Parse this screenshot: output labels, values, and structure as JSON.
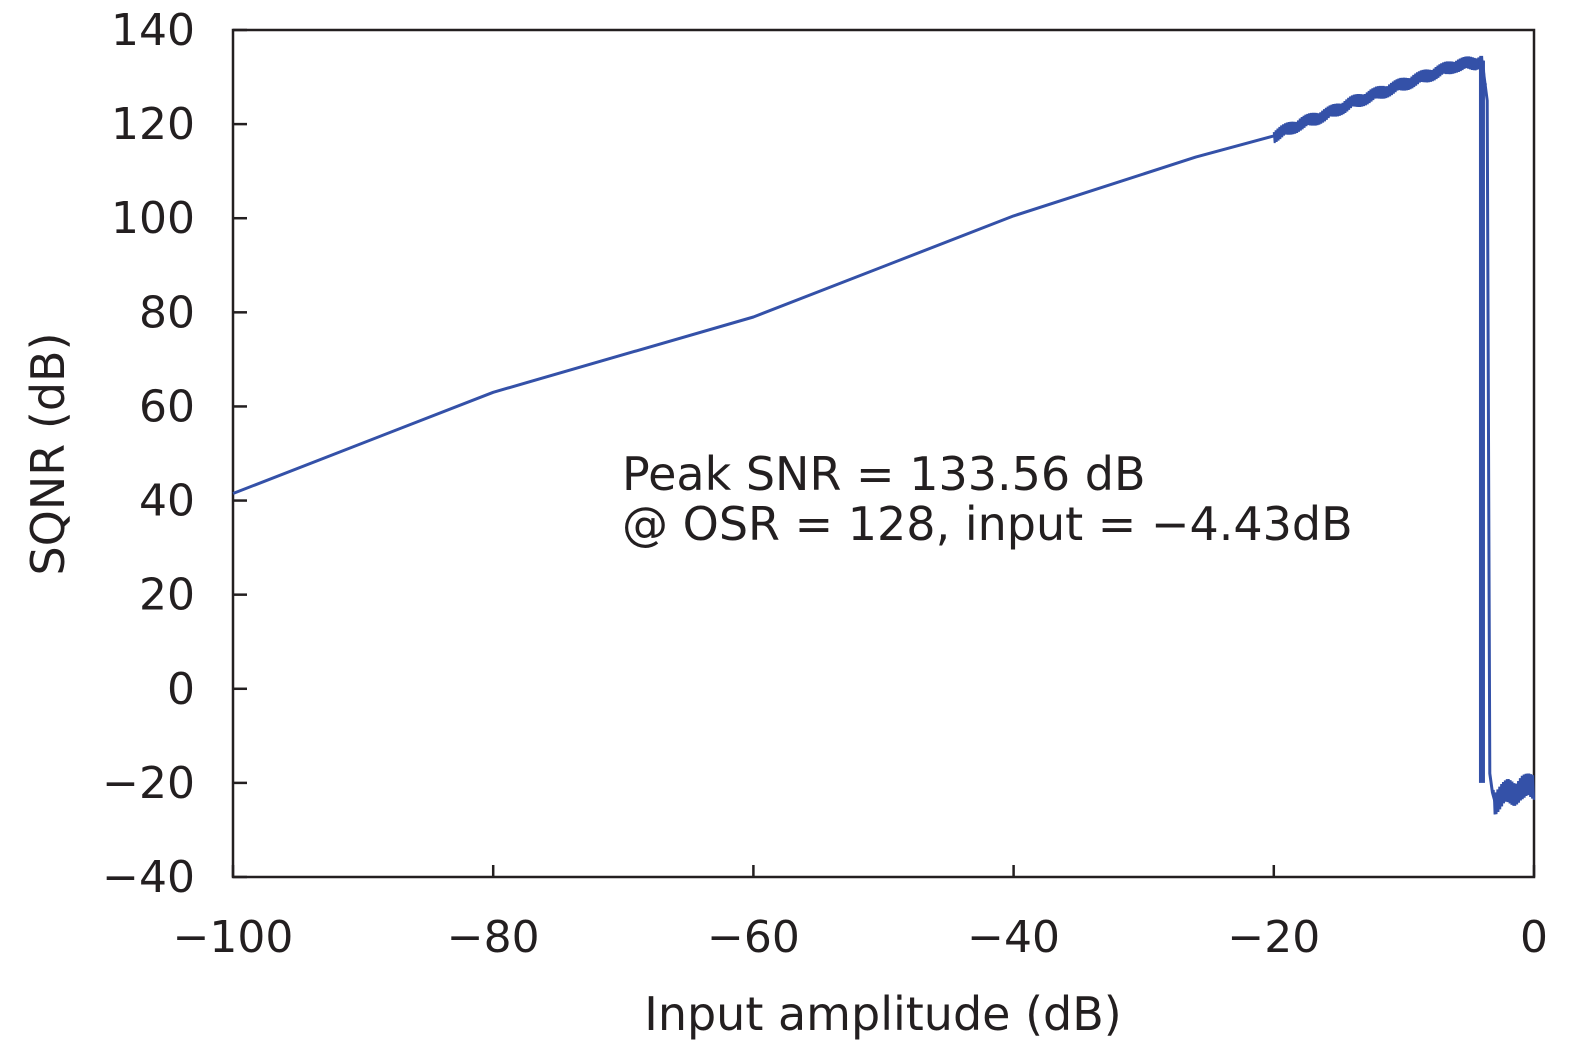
{
  "chart_data": {
    "type": "line",
    "xlabel": "Input amplitude (dB)",
    "ylabel": "SQNR (dB)",
    "xlim": [
      -100,
      0
    ],
    "ylim": [
      -40,
      140
    ],
    "xticks": [
      -100,
      -80,
      -60,
      -40,
      -20,
      0
    ],
    "yticks": [
      -40,
      -20,
      0,
      20,
      40,
      60,
      80,
      100,
      120,
      140
    ],
    "xtick_labels": [
      "−100",
      "−80",
      "−60",
      "−40",
      "−20",
      "0"
    ],
    "ytick_labels": [
      "−40",
      "−20",
      "0",
      "20",
      "40",
      "60",
      "80",
      "100",
      "120",
      "140"
    ],
    "grid": false,
    "line_color": "#3451a8",
    "annotation": [
      "Peak SNR = 133.56 dB",
      "@ OSR = 128, input = −4.43dB"
    ],
    "series": [
      {
        "x": [
          -100,
          -80,
          -60,
          -40,
          -26,
          -20,
          -18,
          -16,
          -14,
          -12,
          -10,
          -8,
          -6,
          -4.5,
          -4.0,
          -3.6,
          -3.4,
          -3.2,
          -3.0,
          -2.5,
          -2.0,
          -1.5,
          -1.0,
          -0.5,
          0
        ],
        "y": [
          41.5,
          63,
          79,
          100.5,
          113,
          117.5,
          120,
          122,
          124.5,
          126.5,
          128.5,
          130.5,
          132.5,
          133,
          133.5,
          125,
          -18,
          -22,
          -24,
          -23,
          -22,
          -22,
          -21,
          -21,
          -21
        ]
      }
    ]
  }
}
